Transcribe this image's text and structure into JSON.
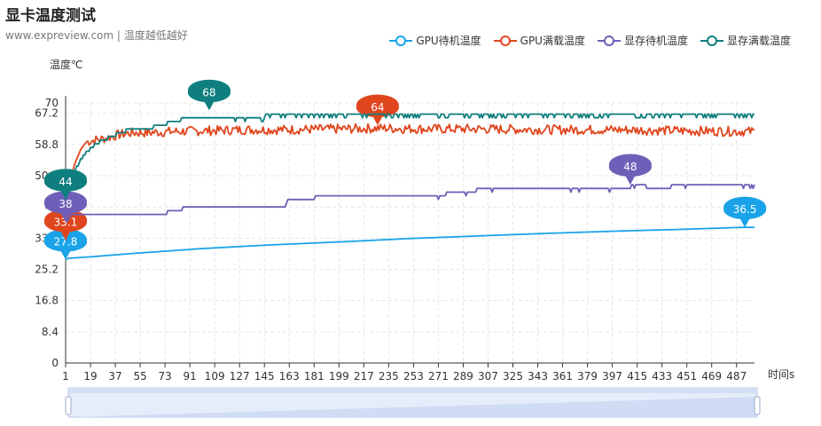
{
  "header": {
    "title": "显卡温度测试",
    "subtitle": "www.expreview.com | 温度越低越好"
  },
  "chart_data": {
    "type": "line",
    "ylabel": "温度℃",
    "xlabel": "时间s",
    "ylim": [
      0,
      70
    ],
    "yticks": [
      0,
      8.4,
      16.8,
      25.2,
      33.6,
      42,
      50.4,
      58.8,
      67.2,
      70
    ],
    "xlim": [
      1,
      500
    ],
    "xticks": [
      1,
      19,
      37,
      55,
      73,
      91,
      109,
      127,
      145,
      163,
      181,
      199,
      217,
      235,
      253,
      271,
      289,
      307,
      325,
      343,
      361,
      379,
      397,
      415,
      433,
      451,
      469,
      487
    ],
    "grid": "dashed",
    "legend_position": "top-right",
    "series": [
      {
        "name": "GPU待机温度",
        "color": "#1aa3e8",
        "x": [
          1,
          3,
          20,
          50,
          100,
          150,
          200,
          250,
          300,
          350,
          400,
          450,
          490,
          500
        ],
        "y": [
          27.8,
          28.2,
          28.6,
          29.5,
          30.8,
          31.8,
          32.6,
          33.5,
          34.2,
          34.9,
          35.5,
          36.0,
          36.5,
          36.5
        ],
        "markers": [
          {
            "x": 1,
            "value": "27.8"
          },
          {
            "x": 493,
            "value": "36.5"
          }
        ]
      },
      {
        "name": "GPU满载温度",
        "color": "#e0461e",
        "x": [
          1,
          3,
          8,
          12,
          16,
          22,
          30,
          40,
          50,
          60,
          80,
          100,
          130,
          160,
          200,
          230,
          260,
          300,
          350,
          400,
          450,
          500
        ],
        "y": [
          33.1,
          48.0,
          54.0,
          57.5,
          59.5,
          60.0,
          60.5,
          61.5,
          62.0,
          62.0,
          62.3,
          62.5,
          62.8,
          62.8,
          63.0,
          63.2,
          63.0,
          63.0,
          62.8,
          62.8,
          62.5,
          62.3
        ],
        "markers": [
          {
            "x": 1,
            "value": "33.1"
          },
          {
            "x": 227,
            "value": "64"
          }
        ]
      },
      {
        "name": "显存待机温度",
        "color": "#6f5fb8",
        "x": [
          1,
          6,
          74,
          76,
          82,
          90,
          160,
          162,
          180,
          184,
          275,
          278,
          298,
          300,
          410,
          412,
          430,
          450,
          460,
          500
        ],
        "y": [
          38,
          40,
          40,
          41,
          41,
          42,
          42,
          44,
          44,
          45,
          45,
          46,
          46,
          47,
          47,
          48,
          47,
          48,
          48,
          48
        ],
        "markers": [
          {
            "x": 1,
            "value": "38"
          },
          {
            "x": 410,
            "value": "48"
          }
        ]
      },
      {
        "name": "显存满载温度",
        "color": "#0f7e7e",
        "x": [
          1,
          3,
          8,
          14,
          20,
          28,
          35,
          40,
          50,
          60,
          70,
          90,
          110,
          140,
          150,
          200,
          250,
          300,
          350,
          400,
          450,
          500
        ],
        "y": [
          44,
          48,
          52,
          56,
          58,
          60,
          61,
          62,
          63,
          63,
          64,
          66,
          66,
          66,
          67,
          67,
          67,
          67,
          67,
          67,
          67,
          67
        ],
        "markers": [
          {
            "x": 1,
            "value": "44"
          },
          {
            "x": 105,
            "value": "68"
          }
        ]
      }
    ]
  }
}
